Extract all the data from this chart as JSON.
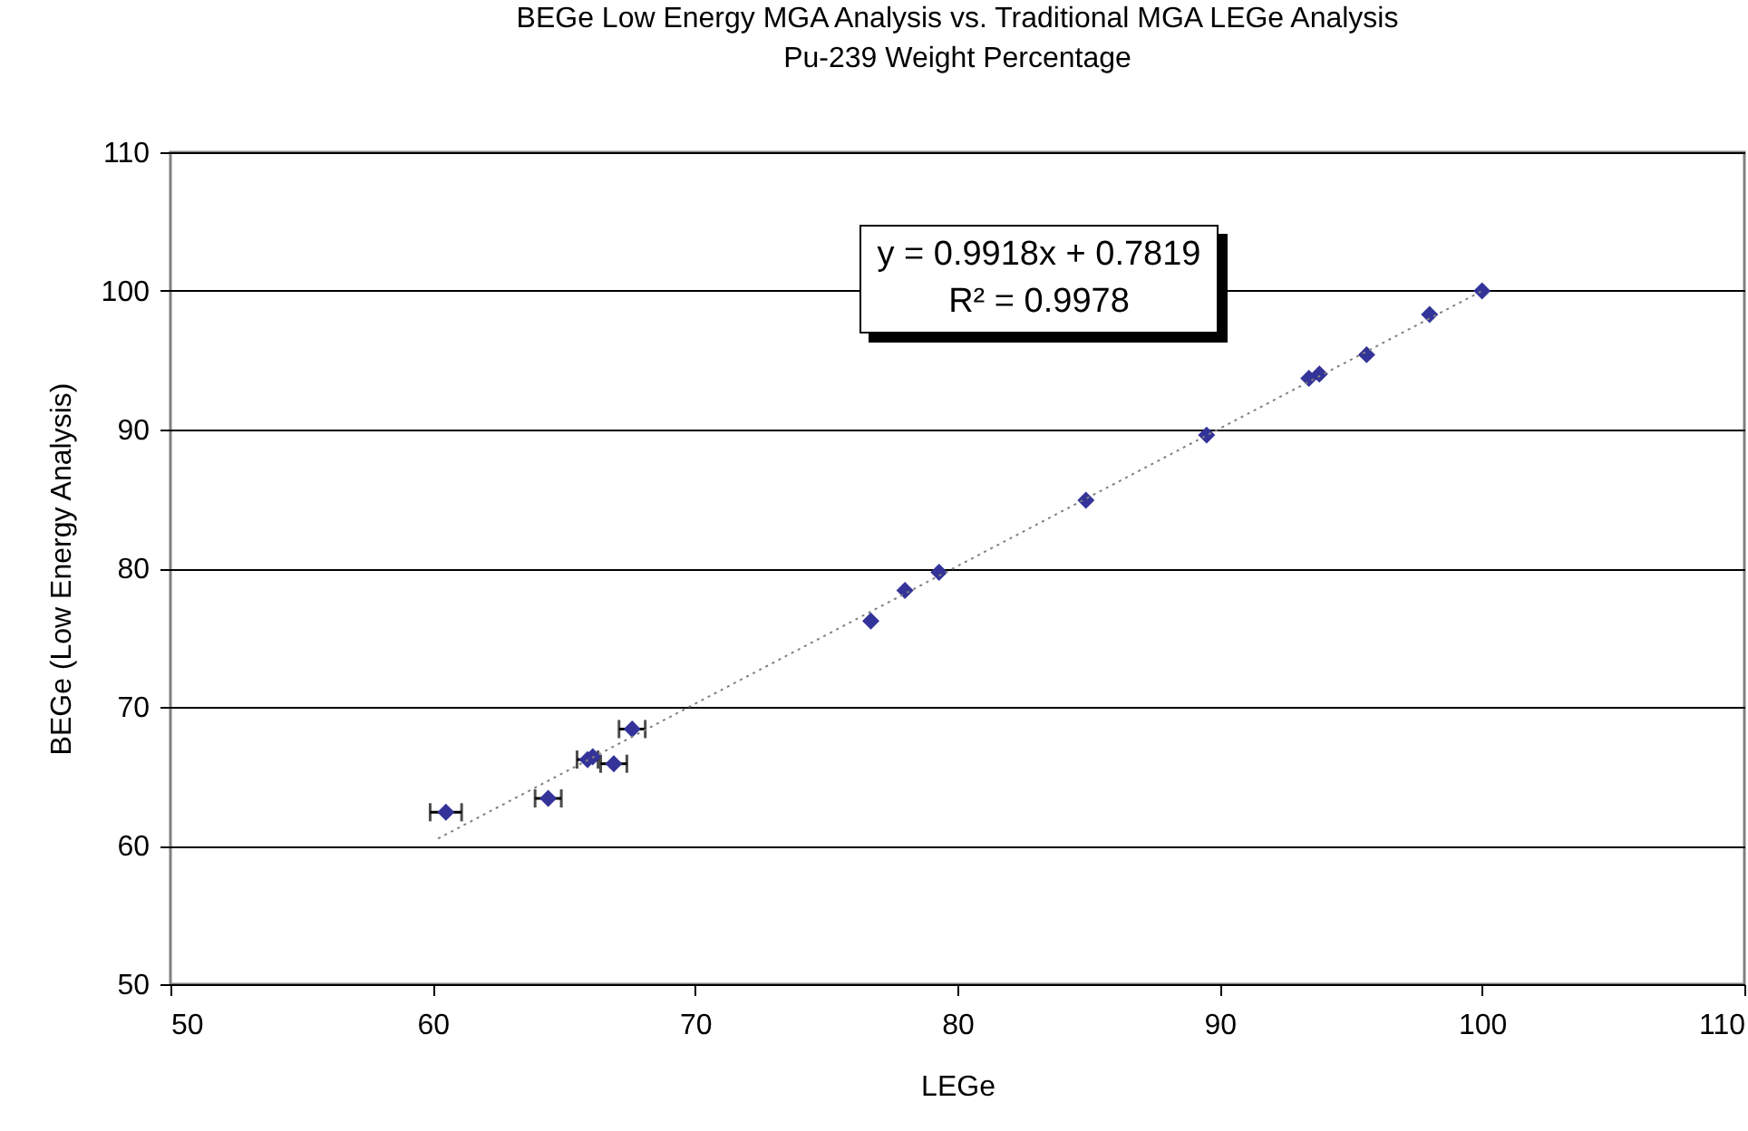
{
  "chart_data": {
    "type": "scatter",
    "title": "BEGe Low Energy MGA Analysis vs. Traditional MGA LEGe Analysis",
    "subtitle": "Pu-239 Weight Percentage",
    "xlabel": "LEGe",
    "ylabel": "BEGe (Low Energy Analysis)",
    "annotations": [
      "y = 0.9918x + 0.7819",
      "R² = 0.9978"
    ],
    "xlim": [
      50,
      110
    ],
    "xticks": [
      50,
      60,
      70,
      80,
      90,
      100,
      110
    ],
    "ylim": [
      50,
      110
    ],
    "yticks": [
      50,
      60,
      70,
      80,
      90,
      100,
      110
    ],
    "grid": "y",
    "marker": "diamond",
    "series": [
      {
        "type": "scatter",
        "color": "#333399",
        "x": [
          60.5,
          64.4,
          65.9,
          66.1,
          66.9,
          67.6,
          76.7,
          78.0,
          79.3,
          84.9,
          89.5,
          93.4,
          93.8,
          95.6,
          98.0,
          100.0
        ],
        "values": [
          62.4,
          63.4,
          66.2,
          66.4,
          65.9,
          68.4,
          76.2,
          78.4,
          79.7,
          84.9,
          89.6,
          93.7,
          94.0,
          95.4,
          98.3,
          100.0
        ],
        "xerrors": [
          0.6,
          0.5,
          0.4,
          null,
          0.5,
          0.5,
          null,
          null,
          null,
          null,
          null,
          null,
          null,
          null,
          null,
          null
        ]
      },
      {
        "type": "line",
        "color": "#808080",
        "line_style": "dotted",
        "marker": "none",
        "x": [
          60.2,
          100.0
        ],
        "values": [
          60.5,
          100.0
        ]
      }
    ]
  }
}
